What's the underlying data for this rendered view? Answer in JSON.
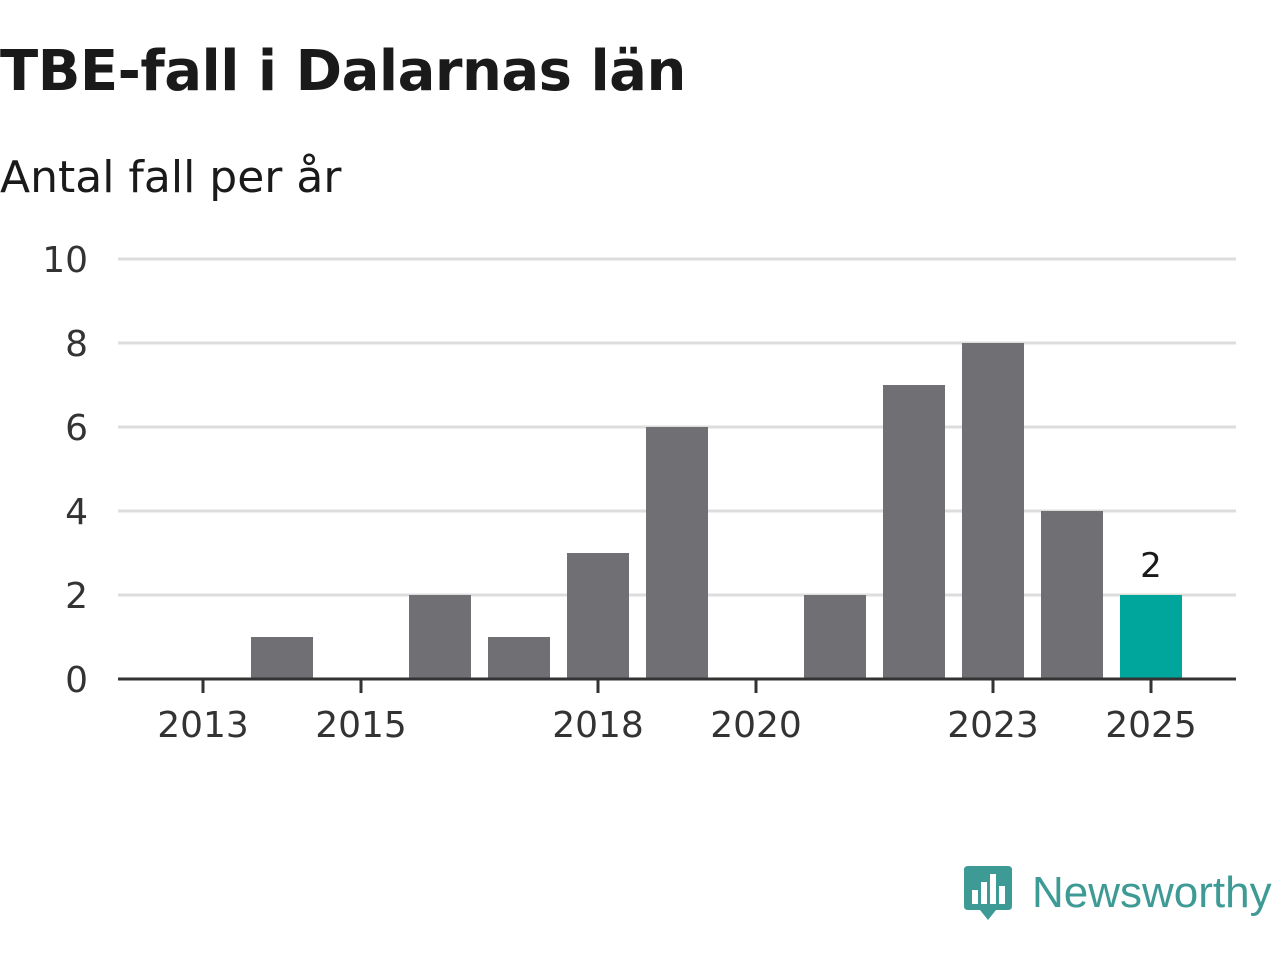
{
  "chart_data": {
    "type": "bar",
    "title": "TBE-fall i Dalarnas län",
    "subtitle": "Antal fall per år",
    "categories": [
      "2013",
      "2014",
      "2015",
      "2016",
      "2017",
      "2018",
      "2019",
      "2020",
      "2021",
      "2022",
      "2023",
      "2024",
      "2025"
    ],
    "values": [
      0,
      1,
      0,
      2,
      1,
      3,
      6,
      0,
      2,
      7,
      8,
      4,
      2
    ],
    "x_tick_labels": [
      "2013",
      "2015",
      "2018",
      "2020",
      "2023",
      "2025"
    ],
    "y_ticks": [
      0,
      2,
      4,
      6,
      8,
      10
    ],
    "ylim": [
      0,
      10
    ],
    "xlabel": "",
    "ylabel": "",
    "grid": true,
    "bar_color": "#706f74",
    "highlight_color": "#00a69b",
    "highlight_category": "2025",
    "highlight_label": "2"
  },
  "brand": {
    "name": "Newsworthy",
    "icon": "newsworthy-logo-icon",
    "color": "#3d9a94"
  }
}
